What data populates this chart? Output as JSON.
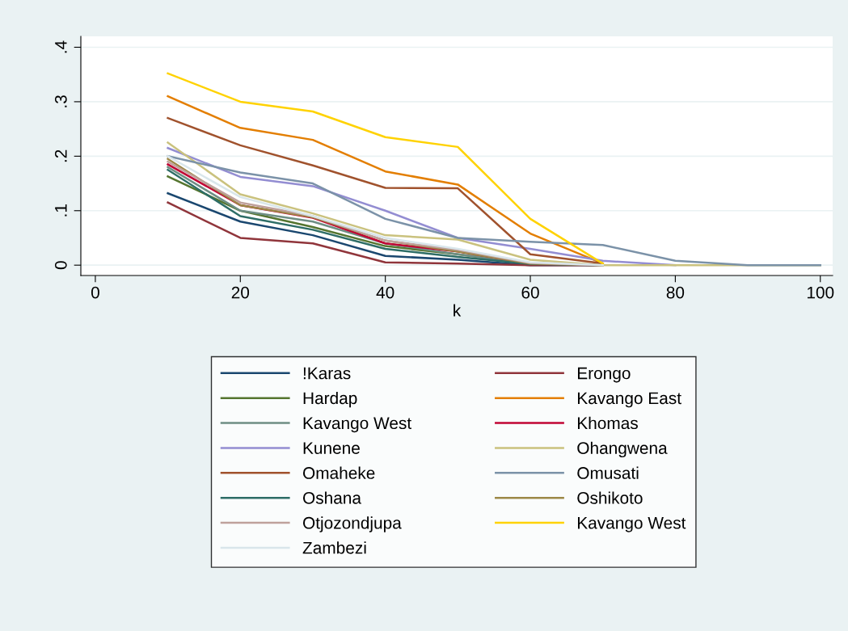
{
  "chart_data": {
    "type": "line",
    "xlabel": "k",
    "xlim": [
      -2,
      101.7
    ],
    "ylim": [
      -0.019,
      0.42
    ],
    "xticks": [
      0,
      20,
      40,
      60,
      80,
      100
    ],
    "yticks": [
      {
        "value": 0,
        "label": "0"
      },
      {
        "value": 0.1,
        "label": ".1"
      },
      {
        "value": 0.2,
        "label": ".2"
      },
      {
        "value": 0.3,
        "label": ".3"
      },
      {
        "value": 0.4,
        "label": ".4"
      }
    ],
    "grid": "y",
    "legend": "bottom",
    "marker": "none",
    "line_style": "solid",
    "series": [
      {
        "name": "!Karas",
        "color": "#1a476f",
        "x": [
          10,
          20,
          30,
          40,
          50,
          60,
          70
        ],
        "values": [
          0.132,
          0.08,
          0.055,
          0.017,
          0.01,
          0,
          0
        ]
      },
      {
        "name": "Erongo",
        "color": "#90353b",
        "x": [
          10,
          20,
          30,
          40,
          50,
          60,
          70
        ],
        "values": [
          0.115,
          0.05,
          0.04,
          0.005,
          0.003,
          0,
          0
        ]
      },
      {
        "name": "Hardap",
        "color": "#55752f",
        "x": [
          10,
          20,
          30,
          40,
          50,
          60,
          70
        ],
        "values": [
          0.163,
          0.1,
          0.07,
          0.035,
          0.02,
          0.003,
          0
        ]
      },
      {
        "name": "Kavango East",
        "color": "#e37e00",
        "x": [
          10,
          20,
          30,
          40,
          50,
          60,
          70
        ],
        "values": [
          0.31,
          0.252,
          0.23,
          0.172,
          0.148,
          0.058,
          0.003
        ]
      },
      {
        "name": "Kavango West",
        "color": "#6e8e84",
        "x": [
          10,
          20,
          30,
          40,
          50,
          60,
          70
        ],
        "values": [
          0.18,
          0.1,
          0.08,
          0.04,
          0.02,
          0.003,
          0
        ]
      },
      {
        "name": "Khomas",
        "color": "#c10534",
        "x": [
          10,
          20,
          30,
          40,
          50,
          60,
          70
        ],
        "values": [
          0.185,
          0.11,
          0.087,
          0.04,
          0.025,
          0.003,
          0
        ]
      },
      {
        "name": "Kunene",
        "color": "#938dd2",
        "x": [
          10,
          20,
          30,
          40,
          50,
          60,
          70,
          80
        ],
        "values": [
          0.215,
          0.162,
          0.145,
          0.1,
          0.05,
          0.03,
          0.008,
          0
        ]
      },
      {
        "name": "Ohangwena",
        "color": "#cac27e",
        "x": [
          10,
          20,
          30,
          40,
          50,
          60,
          70,
          80,
          90,
          100
        ],
        "values": [
          0.225,
          0.13,
          0.095,
          0.055,
          0.047,
          0.01,
          0,
          0,
          0,
          0
        ]
      },
      {
        "name": "Omaheke",
        "color": "#a0522d",
        "x": [
          10,
          20,
          30,
          40,
          50,
          60,
          70
        ],
        "values": [
          0.27,
          0.22,
          0.183,
          0.142,
          0.141,
          0.02,
          0.003
        ]
      },
      {
        "name": "Omusati",
        "color": "#7b92a8",
        "x": [
          10,
          20,
          30,
          40,
          50,
          60,
          70,
          80,
          90,
          100
        ],
        "values": [
          0.2,
          0.17,
          0.15,
          0.085,
          0.05,
          0.043,
          0.037,
          0.008,
          0,
          0
        ]
      },
      {
        "name": "Oshana",
        "color": "#2d6d66",
        "x": [
          10,
          20,
          30,
          40,
          50,
          60,
          70
        ],
        "values": [
          0.175,
          0.09,
          0.065,
          0.03,
          0.015,
          0.002,
          0
        ]
      },
      {
        "name": "Oshikoto",
        "color": "#9c8847",
        "x": [
          10,
          20,
          30,
          40,
          50,
          60,
          70
        ],
        "values": [
          0.195,
          0.11,
          0.088,
          0.045,
          0.025,
          0.003,
          0
        ]
      },
      {
        "name": "Otjozondjupa",
        "color": "#bfa19c",
        "x": [
          10,
          20,
          30,
          40,
          50,
          60,
          70
        ],
        "values": [
          0.19,
          0.115,
          0.09,
          0.045,
          0.028,
          0.004,
          0
        ]
      },
      {
        "name": "Kavango West",
        "color": "#ffd200",
        "x": [
          10,
          20,
          30,
          40,
          50,
          60,
          70
        ],
        "values": [
          0.352,
          0.3,
          0.282,
          0.235,
          0.217,
          0.085,
          0.003
        ]
      },
      {
        "name": "Zambezi",
        "color": "#d9e6eb",
        "x": [
          10,
          20,
          30,
          40,
          50,
          60,
          70
        ],
        "values": [
          0.2,
          0.125,
          0.09,
          0.05,
          0.03,
          0.005,
          0
        ]
      }
    ]
  }
}
